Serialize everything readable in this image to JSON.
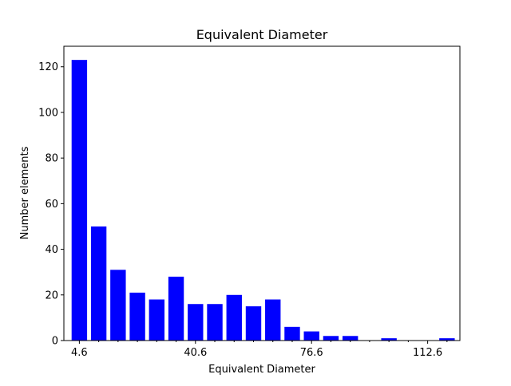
{
  "chart_data": {
    "type": "bar",
    "title": "Equivalent Diameter",
    "xlabel": "Equivalent Diameter",
    "ylabel": "Number elements",
    "x": [
      4.6,
      10.6,
      16.6,
      22.6,
      28.6,
      34.6,
      40.6,
      46.6,
      52.6,
      58.6,
      64.6,
      70.6,
      76.6,
      82.6,
      88.6,
      94.6,
      100.6,
      106.6,
      112.6,
      118.6
    ],
    "values": [
      123,
      50,
      31,
      21,
      18,
      28,
      16,
      16,
      20,
      15,
      18,
      6,
      4,
      2,
      2,
      0,
      1,
      0,
      0,
      1
    ],
    "bar_width": 4.8,
    "xlim": [
      -0.2,
      122.6
    ],
    "ylim": [
      0,
      129
    ],
    "x_major_ticks": [
      4.6,
      40.6,
      76.6,
      112.6
    ],
    "x_minor_ticks": [
      10.6,
      16.6,
      22.6,
      28.6,
      34.6,
      46.6,
      52.6,
      58.6,
      64.6,
      70.6,
      82.6,
      88.6,
      94.6,
      100.6,
      106.6,
      118.6
    ],
    "y_ticks": [
      0,
      20,
      40,
      60,
      80,
      100,
      120
    ],
    "bar_color": "#0000ff",
    "grid": false
  }
}
